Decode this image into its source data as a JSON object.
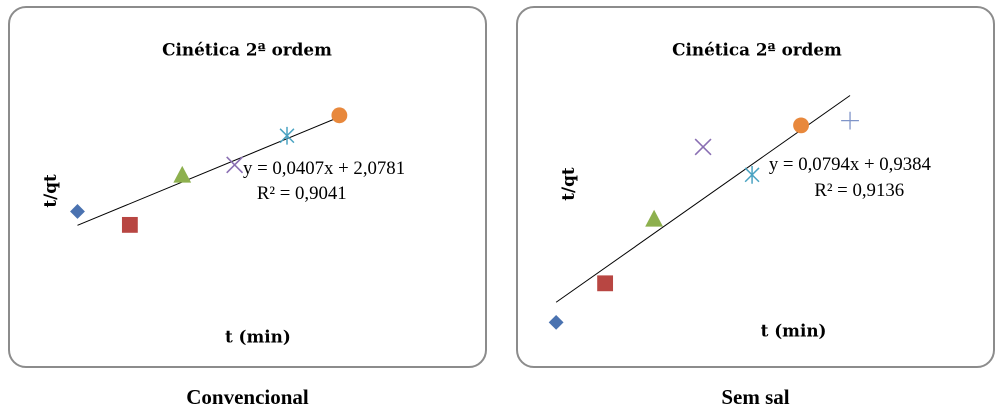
{
  "chart_data": [
    {
      "type": "scatter",
      "title": "Cinética 2ª ordem",
      "xlabel": "t (min)",
      "ylabel": "t/qt",
      "caption": "Convencional",
      "points": [
        {
          "x": 1,
          "y": 1.7,
          "marker": "diamond",
          "color": "#4a72b0"
        },
        {
          "x": 2,
          "y": 1.47,
          "marker": "square",
          "color": "#b84642"
        },
        {
          "x": 3,
          "y": 2.33,
          "marker": "triangle",
          "color": "#8db04e"
        },
        {
          "x": 4,
          "y": 2.5,
          "marker": "x",
          "color": "#8a6fb3"
        },
        {
          "x": 5,
          "y": 3.0,
          "marker": "asterisk",
          "color": "#4aa3c2"
        },
        {
          "x": 6,
          "y": 3.35,
          "marker": "circle",
          "color": "#e8883c"
        }
      ],
      "xlim": [
        0.8,
        6.2
      ],
      "ylim": [
        1.0,
        3.8
      ],
      "trendline": {
        "slope": 0.0407,
        "intercept": 2.0781,
        "x_range": [
          1,
          6
        ]
      },
      "equation": "y = 0,0407x + 2,0781",
      "r2_label": "R² = 0,9041"
    },
    {
      "type": "scatter",
      "title": "Cinética 2ª ordem",
      "xlabel": "t (min)",
      "ylabel": "t/qt",
      "caption": "Sem sal",
      "points": [
        {
          "x": 1,
          "y": 0.35,
          "marker": "diamond",
          "color": "#4a72b0"
        },
        {
          "x": 2,
          "y": 0.84,
          "marker": "square",
          "color": "#b84642"
        },
        {
          "x": 3,
          "y": 1.65,
          "marker": "triangle",
          "color": "#8db04e"
        },
        {
          "x": 4,
          "y": 2.55,
          "marker": "x",
          "color": "#8a6fb3"
        },
        {
          "x": 5,
          "y": 2.2,
          "marker": "asterisk",
          "color": "#4aa3c2"
        },
        {
          "x": 6,
          "y": 2.82,
          "marker": "circle",
          "color": "#e8883c"
        },
        {
          "x": 7,
          "y": 2.88,
          "marker": "plus",
          "color": "#7f94c8"
        }
      ],
      "xlim": [
        0.8,
        7.2
      ],
      "ylim": [
        0.2,
        3.3
      ],
      "trendline": {
        "slope": 0.0794,
        "intercept": 0.9384,
        "x_range": [
          1,
          7
        ]
      },
      "equation": "y = 0,0794x + 0,9384",
      "r2_label": "R² = 0,9136"
    }
  ]
}
